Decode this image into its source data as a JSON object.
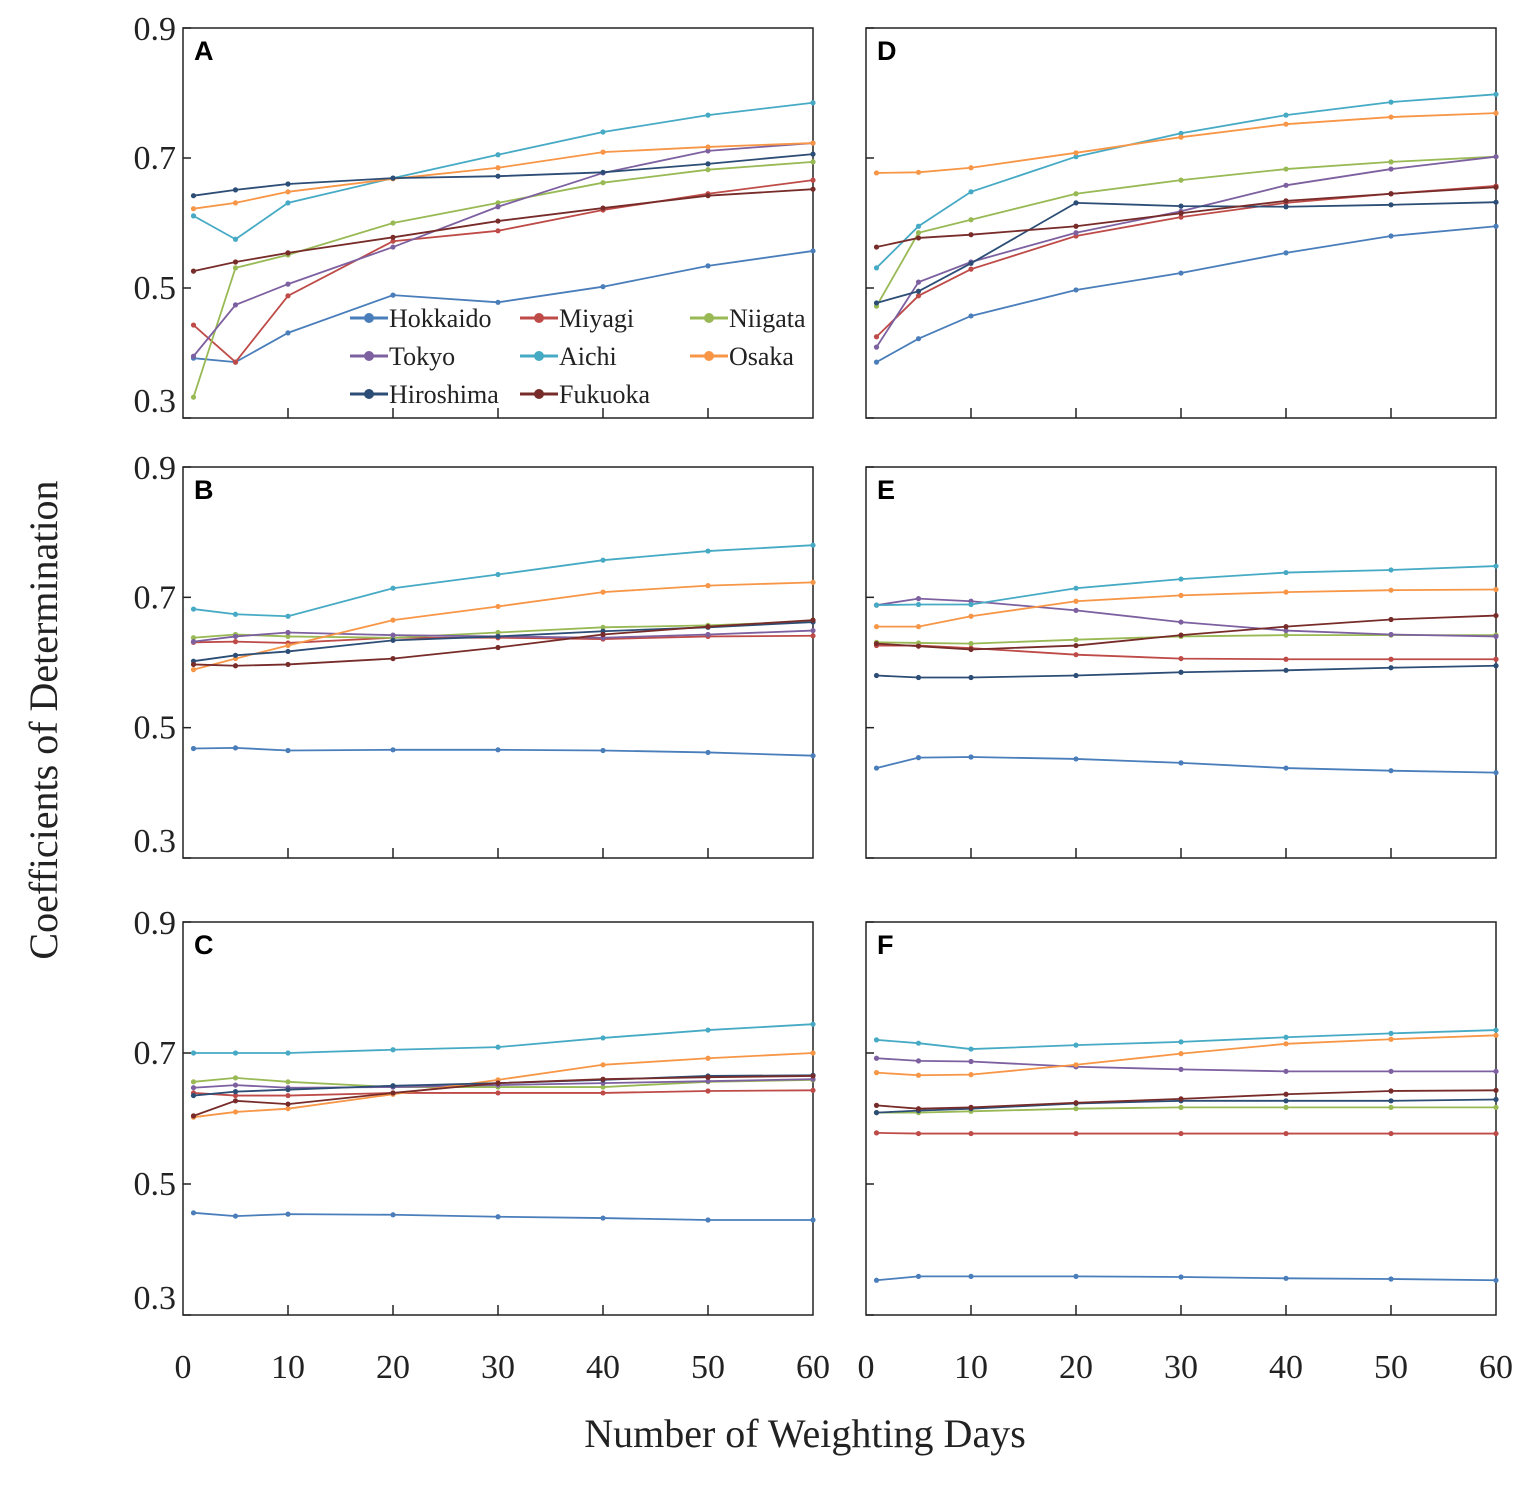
{
  "chart_data": {
    "type": "line",
    "xlabel": "Number of Weighting Days",
    "ylabel": "Coefficients of Determination",
    "ylim": [
      0.3,
      0.9
    ],
    "yticks": [
      "0.3",
      "0.5",
      "0.7",
      "0.9"
    ],
    "xlim": [
      0,
      60
    ],
    "xticks": [
      "0",
      "10",
      "20",
      "30",
      "40",
      "50",
      "60"
    ],
    "x": [
      1,
      5,
      10,
      20,
      30,
      40,
      50,
      60
    ],
    "legend": {
      "placement": "inside panel A, bottom-center",
      "columns": 3
    },
    "colors": {
      "Hokkaido": "#4a7ebb",
      "Miyagi": "#be4b48",
      "Niigata": "#98b954",
      "Tokyo": "#7d60a0",
      "Aichi": "#46aac5",
      "Osaka": "#f79646",
      "Hiroshima": "#2c4d75",
      "Fukuoka": "#772c2a"
    },
    "series_names": [
      "Hokkaido",
      "Miyagi",
      "Niigata",
      "Tokyo",
      "Aichi",
      "Osaka",
      "Hiroshima",
      "Fukuoka"
    ],
    "panels": [
      {
        "label": "A",
        "series": {
          "Hokkaido": [
            0.392,
            0.386,
            0.431,
            0.489,
            0.478,
            0.502,
            0.534,
            0.557
          ],
          "Miyagi": [
            0.443,
            0.386,
            0.488,
            0.572,
            0.588,
            0.62,
            0.645,
            0.666
          ],
          "Niigata": [
            0.332,
            0.531,
            0.551,
            0.6,
            0.631,
            0.662,
            0.682,
            0.694
          ],
          "Tokyo": [
            0.395,
            0.474,
            0.506,
            0.563,
            0.625,
            0.677,
            0.711,
            0.723
          ],
          "Aichi": [
            0.611,
            0.575,
            0.631,
            0.669,
            0.705,
            0.74,
            0.766,
            0.785
          ],
          "Osaka": [
            0.622,
            0.631,
            0.648,
            0.668,
            0.685,
            0.709,
            0.717,
            0.723
          ],
          "Hiroshima": [
            0.642,
            0.651,
            0.66,
            0.669,
            0.672,
            0.678,
            0.691,
            0.706
          ],
          "Fukuoka": [
            0.526,
            0.54,
            0.554,
            0.578,
            0.603,
            0.623,
            0.642,
            0.652
          ]
        }
      },
      {
        "label": "B",
        "series": {
          "Hokkaido": [
            0.468,
            0.469,
            0.465,
            0.466,
            0.466,
            0.465,
            0.462,
            0.457
          ],
          "Miyagi": [
            0.631,
            0.632,
            0.63,
            0.638,
            0.638,
            0.636,
            0.64,
            0.641
          ],
          "Niigata": [
            0.638,
            0.643,
            0.64,
            0.638,
            0.646,
            0.654,
            0.657,
            0.663
          ],
          "Tokyo": [
            0.632,
            0.64,
            0.646,
            0.642,
            0.64,
            0.638,
            0.643,
            0.649
          ],
          "Aichi": [
            0.682,
            0.674,
            0.671,
            0.714,
            0.735,
            0.757,
            0.771,
            0.78
          ],
          "Osaka": [
            0.589,
            0.606,
            0.626,
            0.665,
            0.686,
            0.708,
            0.718,
            0.723
          ],
          "Hiroshima": [
            0.602,
            0.611,
            0.617,
            0.634,
            0.64,
            0.648,
            0.654,
            0.662
          ],
          "Fukuoka": [
            0.597,
            0.595,
            0.597,
            0.606,
            0.623,
            0.643,
            0.655,
            0.665
          ]
        }
      },
      {
        "label": "C",
        "series": {
          "Hokkaido": [
            0.456,
            0.451,
            0.454,
            0.453,
            0.45,
            0.448,
            0.445,
            0.445
          ],
          "Miyagi": [
            0.639,
            0.635,
            0.635,
            0.639,
            0.639,
            0.639,
            0.642,
            0.643
          ],
          "Niigata": [
            0.656,
            0.662,
            0.656,
            0.648,
            0.648,
            0.648,
            0.656,
            0.659
          ],
          "Tokyo": [
            0.647,
            0.651,
            0.647,
            0.648,
            0.651,
            0.654,
            0.657,
            0.66
          ],
          "Aichi": [
            0.7,
            0.7,
            0.7,
            0.705,
            0.709,
            0.723,
            0.735,
            0.744
          ],
          "Osaka": [
            0.602,
            0.61,
            0.615,
            0.637,
            0.659,
            0.682,
            0.692,
            0.7
          ],
          "Hiroshima": [
            0.635,
            0.641,
            0.644,
            0.65,
            0.654,
            0.659,
            0.665,
            0.666
          ],
          "Fukuoka": [
            0.604,
            0.627,
            0.622,
            0.639,
            0.654,
            0.66,
            0.663,
            0.665
          ]
        }
      },
      {
        "label": "D",
        "series": {
          "Hokkaido": [
            0.386,
            0.422,
            0.457,
            0.497,
            0.523,
            0.554,
            0.58,
            0.595
          ],
          "Miyagi": [
            0.425,
            0.488,
            0.529,
            0.58,
            0.609,
            0.631,
            0.645,
            0.657
          ],
          "Niigata": [
            0.472,
            0.585,
            0.605,
            0.645,
            0.666,
            0.683,
            0.694,
            0.702
          ],
          "Tokyo": [
            0.409,
            0.509,
            0.54,
            0.585,
            0.618,
            0.658,
            0.683,
            0.702
          ],
          "Aichi": [
            0.531,
            0.595,
            0.648,
            0.702,
            0.738,
            0.766,
            0.786,
            0.798
          ],
          "Osaka": [
            0.677,
            0.678,
            0.685,
            0.708,
            0.732,
            0.752,
            0.763,
            0.769
          ],
          "Hiroshima": [
            0.477,
            0.495,
            0.538,
            0.631,
            0.626,
            0.625,
            0.628,
            0.632
          ],
          "Fukuoka": [
            0.563,
            0.577,
            0.582,
            0.595,
            0.615,
            0.634,
            0.645,
            0.655
          ]
        }
      },
      {
        "label": "E",
        "series": {
          "Hokkaido": [
            0.438,
            0.454,
            0.455,
            0.452,
            0.446,
            0.438,
            0.434,
            0.431
          ],
          "Miyagi": [
            0.626,
            0.626,
            0.622,
            0.612,
            0.606,
            0.605,
            0.605,
            0.605
          ],
          "Niigata": [
            0.631,
            0.63,
            0.629,
            0.635,
            0.64,
            0.642,
            0.642,
            0.642
          ],
          "Tokyo": [
            0.688,
            0.698,
            0.694,
            0.68,
            0.662,
            0.649,
            0.643,
            0.64
          ],
          "Aichi": [
            0.688,
            0.689,
            0.689,
            0.714,
            0.728,
            0.738,
            0.742,
            0.748
          ],
          "Osaka": [
            0.655,
            0.655,
            0.671,
            0.694,
            0.703,
            0.708,
            0.711,
            0.712
          ],
          "Hiroshima": [
            0.58,
            0.577,
            0.577,
            0.58,
            0.585,
            0.588,
            0.592,
            0.595
          ],
          "Fukuoka": [
            0.629,
            0.625,
            0.62,
            0.626,
            0.642,
            0.655,
            0.666,
            0.672
          ]
        }
      },
      {
        "label": "F",
        "series": {
          "Hokkaido": [
            0.353,
            0.359,
            0.359,
            0.359,
            0.358,
            0.356,
            0.355,
            0.353
          ],
          "Miyagi": [
            0.578,
            0.577,
            0.577,
            0.577,
            0.577,
            0.577,
            0.577,
            0.577
          ],
          "Niigata": [
            0.609,
            0.609,
            0.611,
            0.615,
            0.617,
            0.617,
            0.617,
            0.617
          ],
          "Tokyo": [
            0.692,
            0.688,
            0.687,
            0.679,
            0.675,
            0.672,
            0.672,
            0.672
          ],
          "Aichi": [
            0.72,
            0.715,
            0.706,
            0.712,
            0.717,
            0.724,
            0.73,
            0.735
          ],
          "Osaka": [
            0.67,
            0.666,
            0.667,
            0.682,
            0.699,
            0.714,
            0.721,
            0.727
          ],
          "Hiroshima": [
            0.609,
            0.612,
            0.615,
            0.623,
            0.627,
            0.627,
            0.627,
            0.629
          ],
          "Fukuoka": [
            0.62,
            0.615,
            0.617,
            0.624,
            0.63,
            0.637,
            0.642,
            0.643
          ]
        }
      }
    ]
  }
}
